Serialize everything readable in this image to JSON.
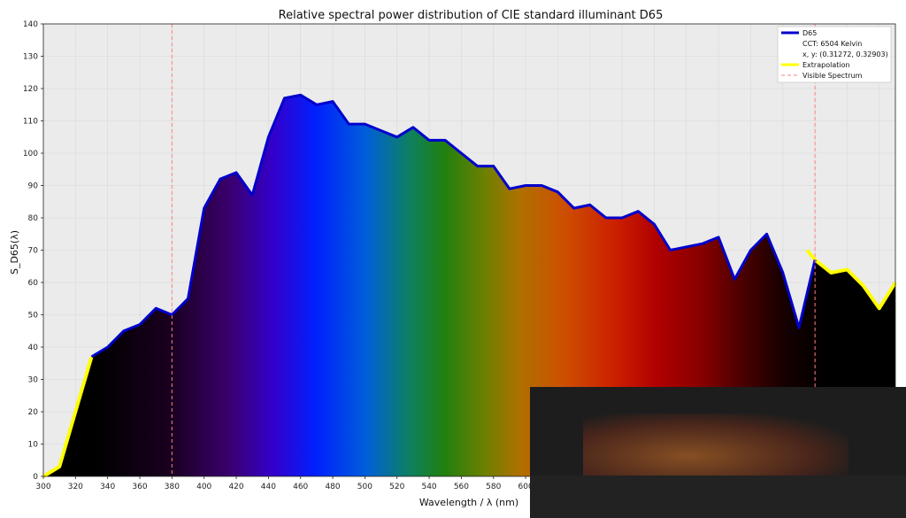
{
  "chart_data": {
    "type": "area",
    "title": "Relative spectral power distribution of CIE standard illuminant D65",
    "xlabel": "Wavelength / λ (nm)",
    "ylabel": "S_D65(λ)",
    "xlim": [
      300,
      830
    ],
    "ylim": [
      0,
      140
    ],
    "x_ticks": [
      "300",
      "320",
      "340",
      "360",
      "380",
      "400",
      "420",
      "440",
      "460",
      "480",
      "500",
      "520",
      "540",
      "560",
      "580",
      "600"
    ],
    "y_ticks": [
      "0",
      "10",
      "20",
      "30",
      "40",
      "50",
      "60",
      "70",
      "80",
      "90",
      "100",
      "110",
      "120",
      "130",
      "140"
    ],
    "grid": true,
    "legend_position": "top-right",
    "visible_spectrum": [
      380,
      780
    ],
    "series": [
      {
        "name": "D65",
        "color": "#0000cc",
        "x": [
          330,
          340,
          350,
          360,
          370,
          380,
          390,
          400,
          410,
          420,
          430,
          440,
          450,
          460,
          470,
          480,
          490,
          500,
          510,
          520,
          530,
          540,
          550,
          560,
          570,
          580,
          590,
          600,
          610,
          620,
          630,
          640,
          650,
          660,
          670,
          680,
          690,
          700,
          710,
          720,
          730,
          740,
          750,
          760,
          770,
          780
        ],
        "y": [
          37,
          40,
          45,
          47,
          52,
          50,
          55,
          83,
          92,
          94,
          87,
          105,
          117,
          118,
          115,
          116,
          109,
          109,
          107,
          105,
          108,
          104,
          104,
          100,
          96,
          96,
          89,
          90,
          90,
          88,
          83,
          84,
          80,
          80,
          82,
          78,
          70,
          71,
          72,
          74,
          61,
          70,
          75,
          63,
          46,
          67
        ]
      },
      {
        "name": "Extrapolation",
        "color": "#ffff00",
        "x": [
          300,
          310,
          320,
          330,
          775,
          780,
          790,
          800,
          810,
          820,
          830
        ],
        "y": [
          0,
          3,
          20,
          37,
          70,
          67,
          63,
          64,
          59,
          52,
          60
        ]
      }
    ],
    "legend_entries": [
      "D65",
      "CCT: 6504 Kelvin",
      "x, y: (0.31272, 0.32903)",
      "Extrapolation",
      "Visible Spectrum"
    ],
    "colors": {
      "plot_bg": "#ebebeb",
      "visible_line": "#ff8080",
      "d65": "#0000cc",
      "extrapolation": "#ffff00"
    }
  }
}
